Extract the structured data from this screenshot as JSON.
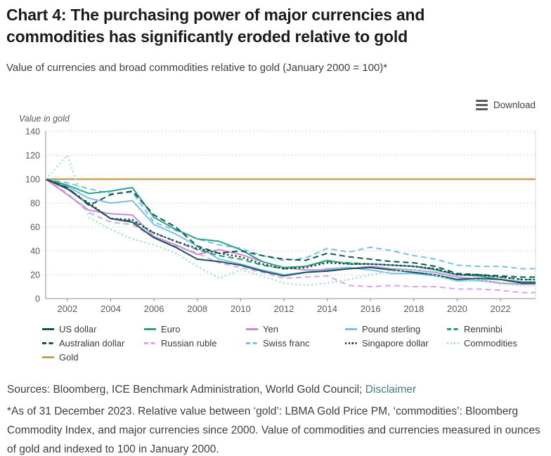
{
  "page": {
    "title": "Chart 4: The purchasing power of major currencies and commodities has significantly eroded relative to gold",
    "subtitle": "Value of currencies and broad commodities relative to gold (January 2000 = 100)*"
  },
  "toolbar": {
    "download_label": "Download"
  },
  "chart_data": {
    "type": "line",
    "axis_title": "Value in gold",
    "x": [
      2001,
      2002,
      2003,
      2004,
      2005,
      2006,
      2007,
      2008,
      2009,
      2010,
      2011,
      2012,
      2013,
      2014,
      2015,
      2016,
      2017,
      2018,
      2019,
      2020,
      2021,
      2022,
      2023
    ],
    "x_ticks": [
      2002,
      2004,
      2006,
      2008,
      2010,
      2012,
      2014,
      2016,
      2018,
      2020,
      2022
    ],
    "y_ticks": [
      0,
      20,
      40,
      60,
      80,
      100,
      120,
      140
    ],
    "ylim": [
      0,
      140
    ],
    "grid": "horizontal dotted",
    "legend_position": "bottom",
    "series": [
      {
        "name": "US dollar",
        "color": "#17505f",
        "style": "solid",
        "values": [
          100,
          92,
          79,
          67,
          64,
          51,
          43,
          33,
          31,
          28,
          23,
          19,
          22,
          23,
          25,
          26,
          24,
          22,
          20,
          16,
          17,
          16,
          13
        ]
      },
      {
        "name": "Euro",
        "color": "#2aa287",
        "style": "solid",
        "values": [
          100,
          95,
          88,
          90,
          93,
          68,
          58,
          50,
          48,
          41,
          31,
          26,
          27,
          32,
          29,
          29,
          28,
          27,
          24,
          20,
          19,
          16,
          14
        ]
      },
      {
        "name": "Yen",
        "color": "#c88bd8",
        "style": "solid",
        "values": [
          100,
          87,
          74,
          71,
          70,
          52,
          45,
          37,
          41,
          37,
          31,
          26,
          24,
          24,
          25,
          27,
          25,
          24,
          22,
          18,
          16,
          13,
          12
        ]
      },
      {
        "name": "Pound sterling",
        "color": "#74c2e6",
        "style": "solid",
        "values": [
          100,
          94,
          84,
          80,
          82,
          62,
          54,
          44,
          33,
          29,
          24,
          20,
          22,
          25,
          26,
          24,
          21,
          21,
          19,
          15,
          15,
          13,
          12
        ]
      },
      {
        "name": "Renminbi",
        "color": "#28a35c",
        "style": "dashed",
        "values": [
          100,
          92,
          79,
          67,
          65,
          55,
          48,
          41,
          36,
          33,
          28,
          25,
          27,
          31,
          30,
          29,
          28,
          27,
          25,
          20,
          20,
          18,
          16
        ]
      },
      {
        "name": "Australian dollar",
        "color": "#174f55",
        "style": "dashed",
        "values": [
          100,
          93,
          78,
          87,
          90,
          70,
          60,
          44,
          38,
          40,
          36,
          33,
          32,
          38,
          35,
          33,
          31,
          30,
          27,
          21,
          20,
          19,
          18
        ]
      },
      {
        "name": "Russian ruble",
        "color": "#d8a6e8",
        "style": "dashed",
        "values": [
          100,
          88,
          72,
          64,
          62,
          51,
          44,
          38,
          30,
          26,
          22,
          17,
          18,
          19,
          11,
          10,
          11,
          10,
          10,
          8,
          8,
          7,
          5
        ]
      },
      {
        "name": "Swiss franc",
        "color": "#74c2e6",
        "style": "dashed",
        "values": [
          100,
          97,
          92,
          88,
          89,
          64,
          57,
          50,
          45,
          42,
          36,
          32,
          34,
          42,
          39,
          43,
          40,
          36,
          33,
          28,
          27,
          27,
          25
        ]
      },
      {
        "name": "Singapore dollar",
        "color": "#20394d",
        "style": "dotted",
        "values": [
          100,
          92,
          80,
          67,
          66,
          55,
          48,
          42,
          38,
          35,
          29,
          25,
          26,
          30,
          29,
          29,
          28,
          27,
          25,
          20,
          20,
          18,
          16
        ]
      },
      {
        "name": "Commodities",
        "color": "#abe7cb",
        "style": "dotted",
        "values": [
          100,
          120,
          68,
          58,
          50,
          45,
          38,
          27,
          17,
          24,
          19,
          13,
          11,
          13,
          16,
          20,
          23,
          24,
          20,
          14,
          16,
          12,
          11
        ]
      },
      {
        "name": "Gold",
        "color": "#c7a152",
        "style": "solid",
        "values": [
          100,
          100,
          100,
          100,
          100,
          100,
          100,
          100,
          100,
          100,
          100,
          100,
          100,
          100,
          100,
          100,
          100,
          100,
          100,
          100,
          100,
          100,
          100
        ]
      }
    ],
    "draw_order": [
      "Gold",
      "Russian ruble",
      "Swiss franc",
      "Pound sterling",
      "Yen",
      "Euro",
      "Renminbi",
      "Australian dollar",
      "Singapore dollar",
      "US dollar",
      "Commodities"
    ]
  },
  "footer": {
    "sources_text": "Sources: Bloomberg, ICE Benchmark Administration, World Gold Council; ",
    "disclaimer_label": "Disclaimer",
    "note": "*As of 31 December 2023. Relative value between ‘gold’: LBMA Gold Price PM, ‘commodities’: Bloomberg Commodity Index, and major currencies since 2000. Value of commodities and currencies measured in ounces of gold and indexed to 100 in January 2000."
  }
}
